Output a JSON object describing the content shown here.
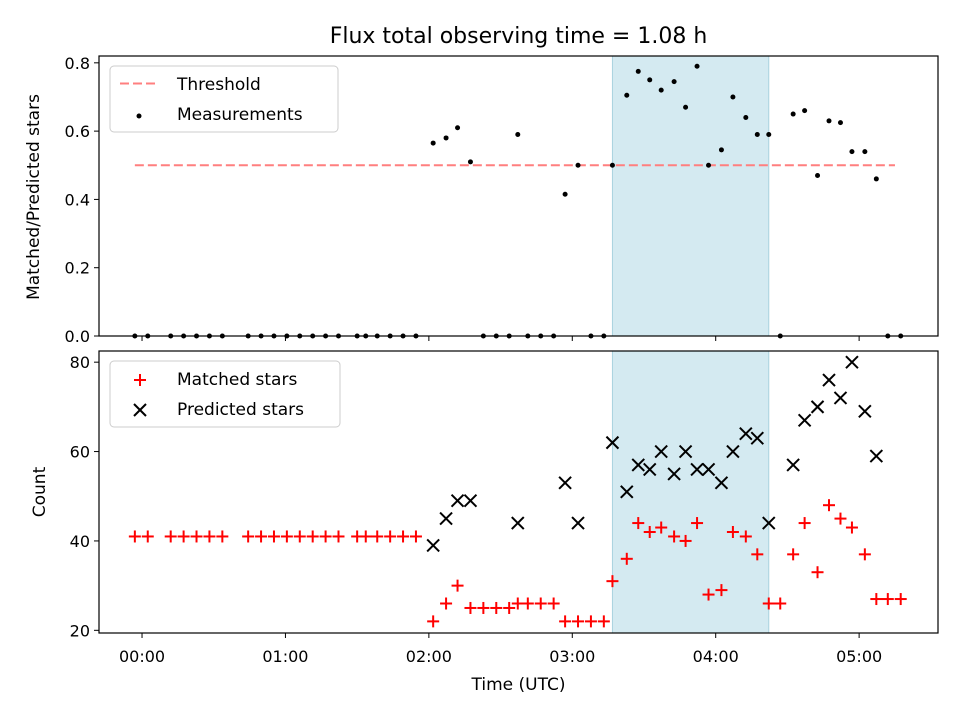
{
  "chart_data": [
    {
      "type": "scatter",
      "title": "Flux total observing time = 1.08 h",
      "xlabel": "",
      "ylabel": "Matched/Predicted stars",
      "xlim_hours": [
        -0.3,
        5.55
      ],
      "ylim": [
        0,
        0.82
      ],
      "yticks": [
        0.0,
        0.2,
        0.4,
        0.6,
        0.8
      ],
      "ytick_labels": [
        "0.0",
        "0.2",
        "0.4",
        "0.6",
        "0.8"
      ],
      "shaded_span_hours": [
        3.28,
        4.37
      ],
      "shade_color": "#d4eaf1",
      "threshold": {
        "label": "Threshold",
        "value": 0.5,
        "x_start": -0.05,
        "x_end": 5.25,
        "color": "#ff7f7f"
      },
      "measurements": {
        "label": "Measurements",
        "color": "#000000",
        "x": [
          -0.05,
          0.04,
          0.2,
          0.29,
          0.38,
          0.47,
          0.56,
          0.74,
          0.83,
          0.92,
          1.01,
          1.1,
          1.19,
          1.28,
          1.37,
          1.5,
          1.56,
          1.64,
          1.73,
          1.82,
          1.91,
          2.03,
          2.12,
          2.2,
          2.29,
          2.38,
          2.47,
          2.56,
          2.62,
          2.69,
          2.78,
          2.87,
          2.95,
          3.04,
          3.13,
          3.22,
          3.28,
          3.38,
          3.46,
          3.54,
          3.62,
          3.71,
          3.79,
          3.87,
          3.95,
          4.04,
          4.12,
          4.21,
          4.29,
          4.37,
          4.45,
          4.54,
          4.62,
          4.71,
          4.79,
          4.87,
          4.95,
          5.04,
          5.12,
          5.2,
          5.29
        ],
        "y": [
          0,
          0,
          0,
          0,
          0,
          0,
          0,
          0,
          0,
          0,
          0,
          0,
          0,
          0,
          0,
          0,
          0,
          0,
          0,
          0,
          0,
          0.565,
          0.58,
          0.61,
          0.51,
          0,
          0,
          0,
          0.59,
          0,
          0,
          0,
          0.415,
          0.5,
          0,
          0,
          0.5,
          0.705,
          0.775,
          0.75,
          0.72,
          0.745,
          0.67,
          0.79,
          0.5,
          0.545,
          0.7,
          0.64,
          0.59,
          0.59,
          0,
          0.65,
          0.66,
          0.47,
          0.63,
          0.625,
          0.54,
          0.54,
          0.46,
          0,
          0
        ]
      }
    },
    {
      "type": "scatter",
      "title": "",
      "xlabel": "Time (UTC)",
      "ylabel": "Count",
      "xlim_hours": [
        -0.3,
        5.55
      ],
      "ylim": [
        19.4,
        82.5
      ],
      "yticks": [
        20,
        40,
        60,
        80
      ],
      "ytick_labels": [
        "20",
        "40",
        "60",
        "80"
      ],
      "xticks_hours": [
        0,
        1,
        2,
        3,
        4,
        5
      ],
      "xtick_labels": [
        "00:00",
        "01:00",
        "02:00",
        "03:00",
        "04:00",
        "05:00"
      ],
      "shaded_span_hours": [
        3.28,
        4.37
      ],
      "shade_color": "#d4eaf1",
      "matched": {
        "label": "Matched stars",
        "color": "#ff0000",
        "x": [
          -0.05,
          0.04,
          0.2,
          0.29,
          0.38,
          0.47,
          0.56,
          0.74,
          0.83,
          0.92,
          1.01,
          1.1,
          1.19,
          1.28,
          1.37,
          1.5,
          1.56,
          1.64,
          1.73,
          1.82,
          1.91,
          2.03,
          2.12,
          2.2,
          2.29,
          2.38,
          2.47,
          2.56,
          2.62,
          2.69,
          2.78,
          2.87,
          2.95,
          3.04,
          3.13,
          3.22,
          3.28,
          3.38,
          3.46,
          3.54,
          3.62,
          3.71,
          3.79,
          3.87,
          3.95,
          4.04,
          4.12,
          4.21,
          4.29,
          4.37,
          4.45,
          4.54,
          4.62,
          4.71,
          4.79,
          4.87,
          4.95,
          5.04,
          5.12,
          5.2,
          5.29
        ],
        "y": [
          41,
          41,
          41,
          41,
          41,
          41,
          41,
          41,
          41,
          41,
          41,
          41,
          41,
          41,
          41,
          41,
          41,
          41,
          41,
          41,
          41,
          22,
          26,
          30,
          25,
          25,
          25,
          25,
          26,
          26,
          26,
          26,
          22,
          22,
          22,
          22,
          31,
          36,
          44,
          42,
          43,
          41,
          40,
          44,
          28,
          29,
          42,
          41,
          37,
          26,
          26,
          37,
          44,
          33,
          48,
          45,
          43,
          37,
          27,
          27,
          27
        ]
      },
      "predicted": {
        "label": "Predicted stars",
        "color": "#000000",
        "x": [
          2.03,
          2.12,
          2.2,
          2.29,
          2.62,
          2.95,
          3.04,
          3.28,
          3.38,
          3.46,
          3.54,
          3.62,
          3.71,
          3.79,
          3.87,
          3.95,
          4.04,
          4.12,
          4.21,
          4.29,
          4.37,
          4.54,
          4.62,
          4.71,
          4.79,
          4.87,
          4.95,
          5.04,
          5.12
        ],
        "y": [
          39,
          45,
          49,
          49,
          44,
          53,
          44,
          62,
          51,
          57,
          56,
          60,
          55,
          60,
          56,
          56,
          53,
          60,
          64,
          63,
          44,
          57,
          67,
          70,
          76,
          72,
          80,
          69,
          59
        ]
      }
    }
  ]
}
